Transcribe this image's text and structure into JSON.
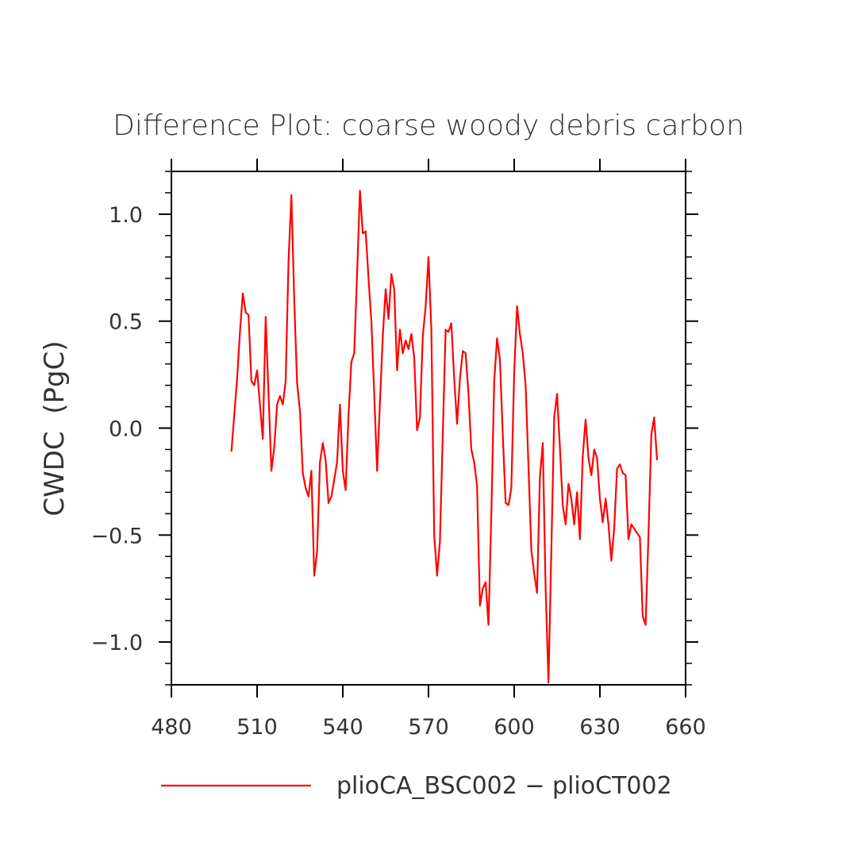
{
  "chart_data": {
    "type": "line",
    "title": "Difference Plot: coarse woody debris carbon",
    "xlabel": "",
    "ylabel": "CWDC  (PgC)",
    "xlim": [
      480,
      660
    ],
    "ylim": [
      -1.2,
      1.2
    ],
    "xticks": [
      480,
      510,
      540,
      570,
      600,
      630,
      660
    ],
    "xtick_labels": [
      "480",
      "510",
      "540",
      "570",
      "600",
      "630",
      "660"
    ],
    "yticks": [
      -1.0,
      -0.5,
      0.0,
      0.5,
      1.0
    ],
    "ytick_labels": [
      "−1.0",
      "−0.5",
      "0.0",
      "0.5",
      "1.0"
    ],
    "grid": false,
    "legend_position": "bottom",
    "series": [
      {
        "name": "plioCA_BSC002 − plioCT002",
        "color": "#ff0000",
        "x": [
          501,
          503,
          504,
          505,
          506,
          507,
          508,
          509,
          510,
          512,
          513,
          514,
          515,
          516,
          517,
          518,
          519,
          520,
          521,
          522,
          523,
          524,
          525,
          526,
          527,
          528,
          529,
          530,
          531,
          532,
          533,
          534,
          535,
          536,
          537,
          538,
          539,
          540,
          541,
          542,
          543,
          544,
          545,
          546,
          547,
          548,
          549,
          550,
          551,
          552,
          553,
          554,
          555,
          556,
          557,
          558,
          559,
          560,
          561,
          562,
          563,
          564,
          565,
          566,
          567,
          568,
          569,
          570,
          571,
          572,
          573,
          574,
          575,
          576,
          577,
          578,
          579,
          580,
          581,
          582,
          583,
          584,
          585,
          586,
          587,
          588,
          589,
          590,
          591,
          592,
          593,
          594,
          595,
          596,
          597,
          598,
          599,
          600,
          601,
          602,
          603,
          604,
          605,
          606,
          607,
          608,
          609,
          610,
          611,
          612,
          613,
          614,
          615,
          616,
          617,
          618,
          619,
          620,
          621,
          622,
          623,
          624,
          625,
          626,
          627,
          628,
          629,
          630,
          631,
          632,
          633,
          634,
          635,
          636,
          637,
          638,
          639,
          640,
          641,
          642,
          643,
          644,
          645,
          646,
          647,
          648,
          649,
          650
        ],
        "y": [
          -0.11,
          0.23,
          0.45,
          0.63,
          0.54,
          0.53,
          0.22,
          0.2,
          0.27,
          -0.05,
          0.52,
          0.16,
          -0.2,
          -0.09,
          0.11,
          0.15,
          0.11,
          0.22,
          0.78,
          1.09,
          0.6,
          0.21,
          0.08,
          -0.21,
          -0.28,
          -0.32,
          -0.2,
          -0.69,
          -0.58,
          -0.16,
          -0.07,
          -0.15,
          -0.35,
          -0.32,
          -0.24,
          -0.16,
          0.11,
          -0.2,
          -0.29,
          0.06,
          0.31,
          0.35,
          0.72,
          1.11,
          0.91,
          0.92,
          0.7,
          0.5,
          0.16,
          -0.2,
          0.12,
          0.43,
          0.65,
          0.51,
          0.72,
          0.65,
          0.27,
          0.46,
          0.35,
          0.41,
          0.37,
          0.44,
          0.33,
          -0.01,
          0.05,
          0.43,
          0.57,
          0.8,
          0.46,
          -0.5,
          -0.69,
          -0.53,
          -0.03,
          0.46,
          0.45,
          0.49,
          0.23,
          0.02,
          0.23,
          0.36,
          0.35,
          0.16,
          -0.1,
          -0.16,
          -0.27,
          -0.83,
          -0.75,
          -0.72,
          -0.92,
          -0.4,
          0.22,
          0.42,
          0.32,
          -0.03,
          -0.35,
          -0.36,
          -0.28,
          0.26,
          0.57,
          0.44,
          0.35,
          0.2,
          -0.18,
          -0.57,
          -0.68,
          -0.77,
          -0.23,
          -0.07,
          -0.75,
          -1.19,
          -0.57,
          0.05,
          0.16,
          -0.09,
          -0.36,
          -0.45,
          -0.26,
          -0.33,
          -0.45,
          -0.3,
          -0.52,
          -0.13,
          0.04,
          -0.14,
          -0.22,
          -0.1,
          -0.14,
          -0.33,
          -0.44,
          -0.33,
          -0.45,
          -0.62,
          -0.47,
          -0.19,
          -0.17,
          -0.21,
          -0.22,
          -0.52,
          -0.45,
          -0.47,
          -0.49,
          -0.51,
          -0.88,
          -0.92,
          -0.5,
          -0.03,
          0.05,
          -0.15
        ]
      }
    ]
  }
}
